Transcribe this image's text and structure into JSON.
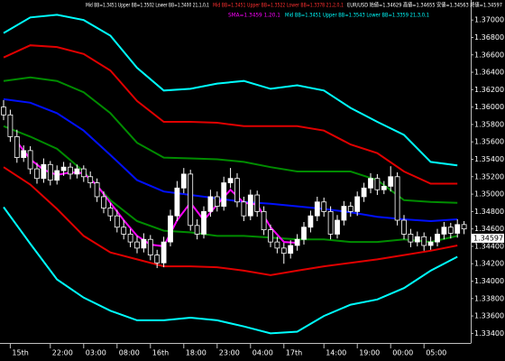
{
  "chart_data": {
    "type": "candlestick",
    "annotations": [
      {
        "text": "Mid BB=1.3451 Upper BB=1.3502 Lower BB=1.3400  21,1,0,1",
        "color": "#ffffff"
      },
      {
        "text": "Mid BB=1.3451 Upper BB=1.3522 Lower BB=1.3378  21,2,0,1",
        "color": "#ff3030"
      },
      {
        "text": "EUR/USD 始値=1.34629 高値=1.34655 安値=1.34563 終値=1.34597",
        "color": "#ffffff"
      },
      {
        "text": "SMA=1.3459  1,20,1",
        "color": "#ff00ff"
      },
      {
        "text": "Mid BB=1.3451 Upper BB=1.3543 Lower BB=1.3359  21,3,0,1",
        "color": "#00ffff"
      }
    ],
    "open": [
      1.36,
      1.3591,
      1.3566,
      1.3542,
      1.355,
      1.3529,
      1.3518,
      1.3534,
      1.3516,
      1.3527,
      1.3531,
      1.3523,
      1.3529,
      1.352,
      1.3513,
      1.3497,
      1.3484,
      1.3475,
      1.3462,
      1.3454,
      1.3445,
      1.3438,
      1.3448,
      1.343,
      1.3421,
      1.3445,
      1.3475,
      1.3507,
      1.3523,
      1.3464,
      1.3454,
      1.348,
      1.3497,
      1.3486,
      1.3513,
      1.3518,
      1.3491,
      1.3475,
      1.3499,
      1.348,
      1.3459,
      1.3445,
      1.3438,
      1.3432,
      1.3441,
      1.3448,
      1.3462,
      1.3475,
      1.3491,
      1.348,
      1.3454,
      1.347,
      1.3486,
      1.348,
      1.3497,
      1.3507,
      1.3518,
      1.3505,
      1.3509,
      1.352,
      1.347,
      1.3454,
      1.3445,
      1.3451,
      1.3441,
      1.3445,
      1.3454,
      1.3462,
      1.3455,
      1.3465
    ],
    "high": [
      1.3608,
      1.3597,
      1.3574,
      1.3556,
      1.3555,
      1.3536,
      1.3541,
      1.3538,
      1.3533,
      1.3537,
      1.3536,
      1.3534,
      1.3533,
      1.3526,
      1.3518,
      1.3503,
      1.349,
      1.3482,
      1.347,
      1.346,
      1.3452,
      1.3455,
      1.3453,
      1.3436,
      1.3451,
      1.3482,
      1.3515,
      1.353,
      1.3528,
      1.3471,
      1.3486,
      1.3505,
      1.3503,
      1.352,
      1.353,
      1.3524,
      1.3497,
      1.3505,
      1.3504,
      1.3486,
      1.3465,
      1.3451,
      1.3444,
      1.3447,
      1.3454,
      1.3468,
      1.3481,
      1.3497,
      1.3496,
      1.3486,
      1.3476,
      1.3492,
      1.3491,
      1.3503,
      1.3513,
      1.3524,
      1.3523,
      1.3515,
      1.3532,
      1.3525,
      1.3476,
      1.346,
      1.3457,
      1.3456,
      1.3451,
      1.346,
      1.3468,
      1.3467,
      1.3471,
      1.3469
    ],
    "low": [
      1.3585,
      1.356,
      1.3536,
      1.3537,
      1.3523,
      1.3512,
      1.3513,
      1.351,
      1.3511,
      1.3521,
      1.3517,
      1.3518,
      1.3514,
      1.3507,
      1.3491,
      1.3478,
      1.3469,
      1.3456,
      1.3448,
      1.3439,
      1.3432,
      1.3433,
      1.3424,
      1.3415,
      1.3416,
      1.344,
      1.3469,
      1.3501,
      1.3458,
      1.3448,
      1.3449,
      1.3474,
      1.348,
      1.3481,
      1.3507,
      1.3485,
      1.3469,
      1.347,
      1.3474,
      1.3453,
      1.3439,
      1.3432,
      1.342,
      1.3426,
      1.3435,
      1.3442,
      1.3456,
      1.3469,
      1.3474,
      1.3448,
      1.3449,
      1.3464,
      1.3474,
      1.3475,
      1.3491,
      1.3501,
      1.3499,
      1.35,
      1.3503,
      1.3464,
      1.3448,
      1.3439,
      1.344,
      1.3435,
      1.3436,
      1.344,
      1.3448,
      1.3449,
      1.345,
      1.3454
    ],
    "close": [
      1.3591,
      1.3566,
      1.3542,
      1.355,
      1.3529,
      1.3518,
      1.3534,
      1.3516,
      1.3527,
      1.3531,
      1.3523,
      1.3529,
      1.352,
      1.3513,
      1.3497,
      1.3484,
      1.3475,
      1.3462,
      1.3454,
      1.3445,
      1.3438,
      1.3448,
      1.343,
      1.3421,
      1.3445,
      1.3475,
      1.3507,
      1.3523,
      1.3464,
      1.3454,
      1.348,
      1.3497,
      1.3486,
      1.3513,
      1.3518,
      1.3491,
      1.3475,
      1.3499,
      1.348,
      1.3459,
      1.3445,
      1.3438,
      1.3432,
      1.3441,
      1.3448,
      1.3462,
      1.3475,
      1.3491,
      1.348,
      1.3454,
      1.347,
      1.3486,
      1.348,
      1.3497,
      1.3507,
      1.3518,
      1.3505,
      1.3509,
      1.352,
      1.347,
      1.3454,
      1.3445,
      1.3451,
      1.3441,
      1.3445,
      1.3454,
      1.3462,
      1.3455,
      1.3465,
      1.346
    ],
    "up_color": "#ffffff",
    "down_color": "#000000",
    "lines": [
      {
        "color": "#00ffff",
        "x": [
          0,
          4,
          8,
          12,
          16,
          20,
          24,
          28,
          32,
          36,
          40,
          44,
          48,
          52,
          56,
          60,
          64,
          68
        ],
        "values": [
          1.3685,
          1.3703,
          1.3706,
          1.37,
          1.3682,
          1.3645,
          1.3619,
          1.3621,
          1.3627,
          1.363,
          1.3621,
          1.3625,
          1.3619,
          1.3599,
          1.3583,
          1.3568,
          1.3537,
          1.3533
        ]
      },
      {
        "color": "#e00000",
        "x": [
          0,
          4,
          8,
          12,
          16,
          20,
          24,
          28,
          32,
          36,
          40,
          44,
          48,
          52,
          56,
          60,
          64,
          68
        ],
        "values": [
          1.3657,
          1.3671,
          1.3669,
          1.3661,
          1.3642,
          1.3607,
          1.3583,
          1.3583,
          1.3582,
          1.3578,
          1.3578,
          1.3578,
          1.3573,
          1.3557,
          1.3547,
          1.3526,
          1.3512,
          1.3512
        ]
      },
      {
        "color": "#008c00",
        "x": [
          0,
          4,
          8,
          12,
          16,
          20,
          24,
          28,
          32,
          36,
          40,
          44,
          48,
          52,
          56,
          60,
          64,
          68
        ],
        "values": [
          1.363,
          1.3634,
          1.363,
          1.3617,
          1.3593,
          1.3559,
          1.3542,
          1.3541,
          1.354,
          1.3537,
          1.3531,
          1.3526,
          1.3526,
          1.3526,
          1.3516,
          1.3493,
          1.3491,
          1.349
        ]
      },
      {
        "color": "#0010ff",
        "x": [
          0,
          4,
          8,
          12,
          16,
          20,
          24,
          28,
          32,
          36,
          40,
          44,
          48,
          52,
          56,
          60,
          64,
          68
        ],
        "values": [
          1.3609,
          1.3605,
          1.3593,
          1.3573,
          1.3545,
          1.3516,
          1.3503,
          1.3499,
          1.3495,
          1.3491,
          1.3489,
          1.3486,
          1.3483,
          1.3479,
          1.3474,
          1.3471,
          1.3469,
          1.3471
        ]
      },
      {
        "color": "#008c00",
        "x": [
          0,
          4,
          8,
          12,
          16,
          20,
          24,
          28,
          32,
          36,
          40,
          44,
          48,
          52,
          56,
          60,
          64,
          68
        ],
        "values": [
          1.3578,
          1.3566,
          1.3552,
          1.3526,
          1.3493,
          1.3469,
          1.3458,
          1.3456,
          1.3452,
          1.3452,
          1.345,
          1.3448,
          1.3448,
          1.3445,
          1.3445,
          1.3448,
          1.3445,
          1.3452
        ]
      },
      {
        "color": "#e00000",
        "x": [
          0,
          4,
          8,
          12,
          16,
          20,
          24,
          28,
          32,
          36,
          40,
          44,
          48,
          52,
          56,
          60,
          64,
          68
        ],
        "values": [
          1.3531,
          1.3511,
          1.3483,
          1.3452,
          1.3433,
          1.3425,
          1.3417,
          1.3417,
          1.3416,
          1.3412,
          1.3407,
          1.3412,
          1.3417,
          1.3421,
          1.3425,
          1.343,
          1.3435,
          1.3441
        ]
      },
      {
        "color": "#00ffff",
        "x": [
          0,
          4,
          8,
          12,
          16,
          20,
          24,
          28,
          32,
          36,
          40,
          44,
          48,
          52,
          56,
          60,
          64,
          68
        ],
        "values": [
          1.3485,
          1.3443,
          1.3402,
          1.3381,
          1.3366,
          1.3355,
          1.3355,
          1.3358,
          1.3355,
          1.3348,
          1.334,
          1.3342,
          1.336,
          1.3373,
          1.3379,
          1.3392,
          1.3412,
          1.3428
        ]
      },
      {
        "color": "#ff00ff",
        "x": [
          2,
          4,
          6,
          8,
          10,
          12,
          14,
          16,
          18,
          20,
          22,
          24,
          26,
          28,
          30,
          32,
          34,
          36,
          38,
          40,
          42,
          44
        ],
        "values": [
          1.356,
          1.354,
          1.3528,
          1.3522,
          1.3525,
          1.3524,
          1.351,
          1.349,
          1.347,
          1.3452,
          1.3442,
          1.344,
          1.347,
          1.349,
          1.347,
          1.3488,
          1.3505,
          1.349,
          1.3488,
          1.3462,
          1.3445,
          1.3444
        ]
      }
    ],
    "last_price": 1.34597,
    "ylim": [
      1.3329,
      1.3723
    ],
    "yticks": [
      {
        "value": 1.37,
        "label": "1.37000"
      },
      {
        "value": 1.368,
        "label": "1.36800"
      },
      {
        "value": 1.366,
        "label": "1.36600"
      },
      {
        "value": 1.364,
        "label": "1.36400"
      },
      {
        "value": 1.362,
        "label": "1.36200"
      },
      {
        "value": 1.36,
        "label": "1.36000"
      },
      {
        "value": 1.358,
        "label": "1.35800"
      },
      {
        "value": 1.356,
        "label": "1.35600"
      },
      {
        "value": 1.354,
        "label": "1.35400"
      },
      {
        "value": 1.352,
        "label": "1.35200"
      },
      {
        "value": 1.35,
        "label": "1.35000"
      },
      {
        "value": 1.348,
        "label": "1.34800"
      },
      {
        "value": 1.346,
        "label": "1.34600"
      },
      {
        "value": 1.344,
        "label": "1.34400"
      },
      {
        "value": 1.342,
        "label": "1.34200"
      },
      {
        "value": 1.34,
        "label": "1.34000"
      },
      {
        "value": 1.338,
        "label": "1.33800"
      },
      {
        "value": 1.336,
        "label": "1.33600"
      },
      {
        "value": 1.334,
        "label": "1.33400"
      }
    ],
    "xticks": [
      {
        "value": 1,
        "label": "15th"
      },
      {
        "value": 7,
        "label": "22:00"
      },
      {
        "value": 12,
        "label": "03:00"
      },
      {
        "value": 17,
        "label": "08:00"
      },
      {
        "value": 22,
        "label": "16th"
      },
      {
        "value": 27,
        "label": "18:00"
      },
      {
        "value": 32,
        "label": "23:00"
      },
      {
        "value": 37,
        "label": "04:00"
      },
      {
        "value": 42,
        "label": "17th"
      },
      {
        "value": 48,
        "label": "14:00"
      },
      {
        "value": 53,
        "label": "19:00"
      },
      {
        "value": 58,
        "label": "00:00"
      },
      {
        "value": 63,
        "label": "05:00"
      }
    ]
  }
}
